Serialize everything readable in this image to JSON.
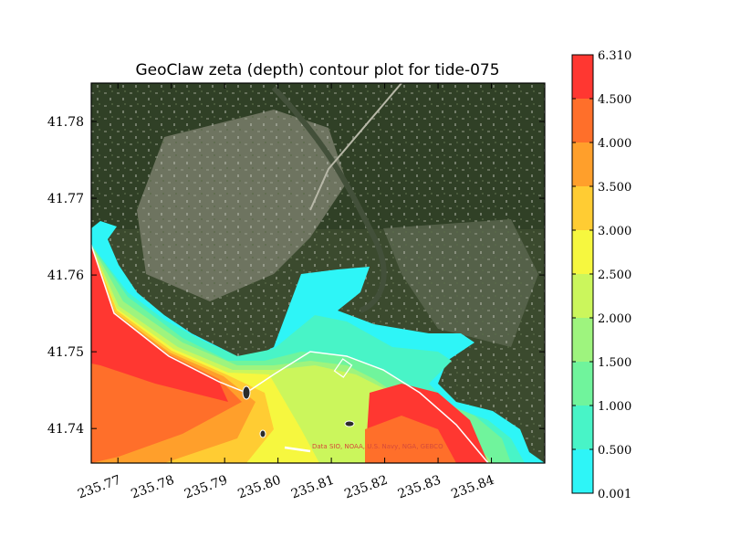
{
  "chart_data": {
    "type": "heatmap",
    "title": "GeoClaw zeta (depth) contour plot for tide-075",
    "xlabel": "",
    "ylabel": "",
    "xlim": [
      235.765,
      235.85
    ],
    "ylim": [
      41.7355,
      41.785
    ],
    "x_ticks": [
      "235.77",
      "235.78",
      "235.79",
      "235.80",
      "235.81",
      "235.82",
      "235.83",
      "235.84"
    ],
    "x_tick_values": [
      235.77,
      235.78,
      235.79,
      235.8,
      235.81,
      235.82,
      235.83,
      235.84
    ],
    "y_ticks": [
      "41.74",
      "41.75",
      "41.76",
      "41.77",
      "41.78"
    ],
    "y_tick_values": [
      41.74,
      41.75,
      41.76,
      41.77,
      41.78
    ],
    "colorbar": {
      "levels": [
        "0.001",
        "0.500",
        "1.000",
        "1.500",
        "2.000",
        "2.500",
        "3.000",
        "3.500",
        "4.000",
        "4.500",
        "6.310"
      ],
      "colors": [
        "#2ef5f7",
        "#48f4c7",
        "#70f49c",
        "#9ef47e",
        "#cbf65c",
        "#f6f73f",
        "#ffcc33",
        "#ff9f2b",
        "#ff6f2a",
        "#ff3731"
      ]
    },
    "background": "satellite-imagery",
    "attribution": "Data SIO, NOAA, U.S. Navy, NGA, GEBCO",
    "grid": false
  }
}
